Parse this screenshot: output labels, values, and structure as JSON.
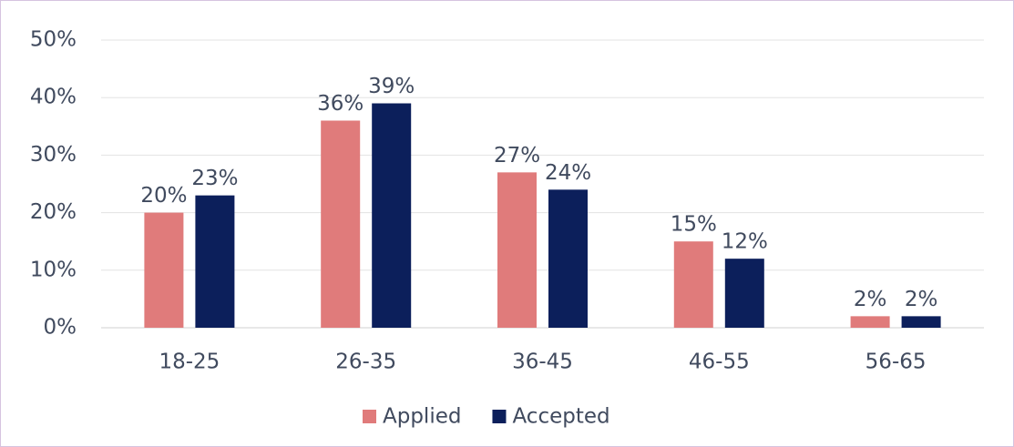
{
  "chart_data": {
    "type": "bar",
    "categories": [
      "18-25",
      "26-35",
      "36-45",
      "46-55",
      "56-65"
    ],
    "series": [
      {
        "name": "Applied",
        "color": "#e07b7b",
        "values": [
          20,
          36,
          27,
          15,
          2
        ],
        "value_labels": [
          "20%",
          "36%",
          "27%",
          "15%",
          "2%"
        ]
      },
      {
        "name": "Accepted",
        "color": "#0c1f5b",
        "values": [
          23,
          39,
          24,
          12,
          2
        ],
        "value_labels": [
          "23%",
          "39%",
          "24%",
          "12%",
          "2%"
        ]
      }
    ],
    "ylim": [
      0,
      50
    ],
    "yticks": [
      {
        "value": 0,
        "label": "0%"
      },
      {
        "value": 10,
        "label": "10%"
      },
      {
        "value": 20,
        "label": "20%"
      },
      {
        "value": 30,
        "label": "30%"
      },
      {
        "value": 40,
        "label": "40%"
      },
      {
        "value": 50,
        "label": "50%"
      }
    ],
    "grid": true,
    "legend": "bottom"
  }
}
